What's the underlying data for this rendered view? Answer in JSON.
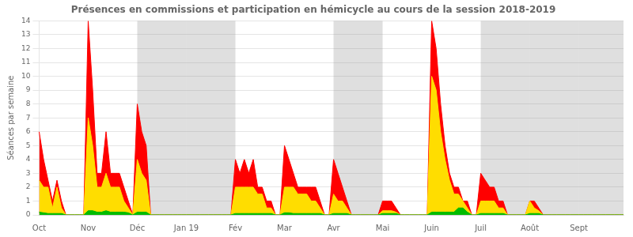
{
  "chart_data": {
    "type": "area",
    "title": "Présences en commissions et participation en hémicycle au cours de la session 2018-2019",
    "ylabel": "Séances par semaine",
    "categories": [
      "Oct",
      null,
      null,
      null,
      null,
      null,
      null,
      null,
      null,
      null,
      null,
      "Nov",
      null,
      null,
      null,
      null,
      null,
      null,
      null,
      null,
      null,
      null,
      "Déc",
      null,
      null,
      null,
      null,
      null,
      null,
      null,
      null,
      null,
      null,
      "Jan 19",
      null,
      null,
      null,
      null,
      null,
      null,
      null,
      null,
      null,
      null,
      "Fév",
      null,
      null,
      null,
      null,
      null,
      null,
      null,
      null,
      null,
      null,
      "Mar",
      null,
      null,
      null,
      null,
      null,
      null,
      null,
      null,
      null,
      null,
      "Avr",
      null,
      null,
      null,
      null,
      null,
      null,
      null,
      null,
      null,
      null,
      "Mai",
      null,
      null,
      null,
      null,
      null,
      null,
      null,
      null,
      null,
      null,
      "Juin",
      null,
      null,
      null,
      null,
      null,
      null,
      null,
      null,
      null,
      null,
      "Juil",
      null,
      null,
      null,
      null,
      null,
      null,
      null,
      null,
      null,
      null,
      "Août",
      null,
      null,
      null,
      null,
      null,
      null,
      null,
      null,
      null,
      null,
      "Sept",
      null,
      null,
      null,
      null,
      null,
      null,
      null,
      null,
      null,
      null
    ],
    "shaded_months": [
      "Déc",
      "Jan 19",
      "Avr",
      "Juil",
      "Août",
      "Sept"
    ],
    "series": [
      {
        "color": "#ff0000",
        "values": [
          6,
          4,
          2.5,
          1,
          2.5,
          1,
          0,
          0,
          0,
          0,
          0,
          14,
          9,
          3,
          3,
          6,
          3,
          3,
          3,
          2,
          1,
          0,
          8,
          6,
          5,
          0,
          0,
          0,
          0,
          0,
          0,
          0,
          0,
          0,
          0,
          0,
          0,
          0,
          0,
          0,
          0,
          0,
          0,
          0,
          4,
          3,
          4,
          3,
          4,
          2,
          2,
          1,
          1,
          0,
          0,
          5,
          4,
          3,
          2,
          2,
          2,
          2,
          2,
          1,
          0,
          0,
          4,
          3,
          2,
          1,
          0,
          0,
          0,
          0,
          0,
          0,
          0,
          1,
          1,
          1,
          0.5,
          0,
          0,
          0,
          0,
          0,
          0,
          0,
          14,
          12,
          8,
          5,
          3,
          2,
          2,
          1,
          1,
          0,
          0,
          3,
          2.5,
          2,
          2,
          1,
          1,
          0,
          0,
          0,
          0,
          0,
          1,
          1,
          0.5,
          0,
          0,
          0,
          0,
          0,
          0,
          0,
          0,
          0,
          0,
          0,
          0,
          0,
          0,
          0,
          0,
          0,
          0,
          0
        ]
      },
      {
        "color": "#ffdd00",
        "values": [
          2.5,
          2,
          2,
          0.5,
          2,
          0.5,
          0,
          0,
          0,
          0,
          0,
          7,
          5,
          2,
          2,
          3,
          2,
          2,
          2,
          1,
          0.5,
          0,
          4,
          3,
          2.5,
          0,
          0,
          0,
          0,
          0,
          0,
          0,
          0,
          0,
          0,
          0,
          0,
          0,
          0,
          0,
          0,
          0,
          0,
          0,
          2,
          2,
          2,
          2,
          2,
          1.5,
          1.5,
          0.5,
          0.5,
          0,
          0,
          2,
          2,
          2,
          1.5,
          1.5,
          1.5,
          1,
          1,
          0.5,
          0,
          0,
          1.5,
          1,
          1,
          0.5,
          0,
          0,
          0,
          0,
          0,
          0,
          0,
          0.3,
          0.3,
          0.3,
          0.2,
          0,
          0,
          0,
          0,
          0,
          0,
          0,
          10,
          9,
          6,
          4,
          2.5,
          1.5,
          1.5,
          1,
          0.5,
          0,
          0,
          1,
          1,
          1,
          1,
          0.5,
          0.5,
          0,
          0,
          0,
          0,
          0,
          1,
          0.5,
          0.3,
          0,
          0,
          0,
          0,
          0,
          0,
          0,
          0,
          0,
          0,
          0,
          0,
          0,
          0,
          0,
          0,
          0,
          0,
          0
        ]
      },
      {
        "color": "#00bb00",
        "values": [
          0.2,
          0.15,
          0.1,
          0.1,
          0.1,
          0.1,
          0,
          0,
          0,
          0,
          0,
          0.3,
          0.3,
          0.2,
          0.2,
          0.3,
          0.2,
          0.2,
          0.2,
          0.2,
          0.15,
          0,
          0.2,
          0.2,
          0.2,
          0,
          0,
          0,
          0,
          0,
          0,
          0,
          0,
          0,
          0,
          0,
          0,
          0,
          0,
          0,
          0,
          0,
          0,
          0,
          0.1,
          0.1,
          0.1,
          0.1,
          0.1,
          0.1,
          0.1,
          0.1,
          0.1,
          0,
          0,
          0.15,
          0.15,
          0.1,
          0.1,
          0.1,
          0.1,
          0.1,
          0.1,
          0.1,
          0,
          0,
          0.1,
          0.1,
          0.1,
          0.1,
          0,
          0,
          0,
          0,
          0,
          0,
          0,
          0.1,
          0.1,
          0.1,
          0.1,
          0,
          0,
          0,
          0,
          0,
          0,
          0,
          0.2,
          0.2,
          0.2,
          0.2,
          0.2,
          0.2,
          0.5,
          0.5,
          0.2,
          0,
          0,
          0.1,
          0.1,
          0.1,
          0.1,
          0.1,
          0.1,
          0,
          0,
          0,
          0,
          0,
          0.1,
          0.1,
          0.1,
          0,
          0,
          0,
          0,
          0,
          0,
          0,
          0,
          0,
          0,
          0,
          0,
          0,
          0,
          0,
          0,
          0,
          0,
          0
        ]
      }
    ],
    "ylim": [
      0,
      14
    ],
    "yticks": [
      0,
      1,
      2,
      3,
      4,
      5,
      6,
      7,
      8,
      9,
      10,
      11,
      12,
      13,
      14
    ],
    "grid": true
  }
}
